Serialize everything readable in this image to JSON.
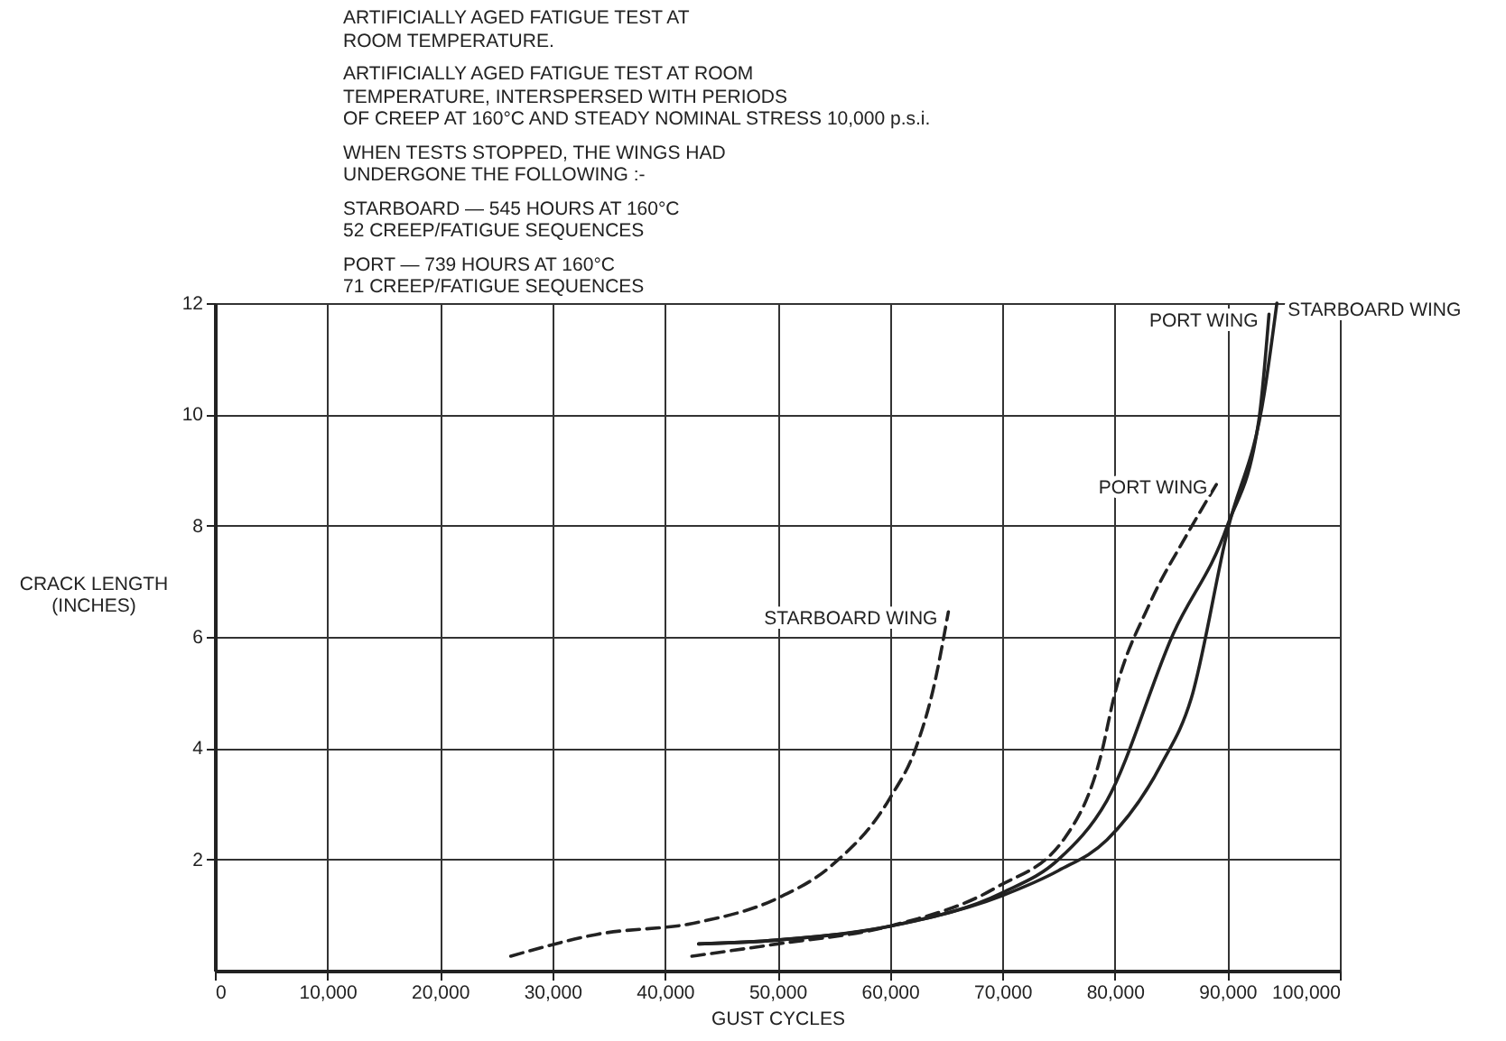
{
  "chart_data": {
    "type": "line",
    "xlabel": "GUST CYCLES",
    "ylabel": "CRACK LENGTH (INCHES)",
    "xlim": [
      0,
      100000
    ],
    "xticks": [
      {
        "value": 0,
        "label": "0"
      },
      {
        "value": 10000,
        "label": "10,000"
      },
      {
        "value": 20000,
        "label": "20,000"
      },
      {
        "value": 30000,
        "label": "30,000"
      },
      {
        "value": 40000,
        "label": "40,000"
      },
      {
        "value": 50000,
        "label": "50,000"
      },
      {
        "value": 60000,
        "label": "60,000"
      },
      {
        "value": 70000,
        "label": "70,000"
      },
      {
        "value": 80000,
        "label": "80,000"
      },
      {
        "value": 90000,
        "label": "90,000"
      },
      {
        "value": 100000,
        "label": "100,000"
      }
    ],
    "ylim": [
      0,
      12
    ],
    "yticks": [
      2,
      4,
      6,
      8,
      10,
      12
    ],
    "grid": true,
    "series": [
      {
        "name": "STARBOARD WING",
        "color": "#222222",
        "line_style": "dashed",
        "x": [
          26300,
          33900,
          43000,
          50000,
          54700,
          60000,
          62300,
          63900,
          65200
        ],
        "values": [
          0.26,
          0.65,
          0.87,
          1.3,
          1.87,
          3.1,
          4.0,
          5.1,
          6.45
        ]
      },
      {
        "name": "PORT WING",
        "color": "#222222",
        "line_style": "dashed",
        "x": [
          42400,
          50000,
          60000,
          69500,
          75600,
          78800,
          79900,
          83100,
          86300,
          89200
        ],
        "values": [
          0.26,
          0.48,
          0.8,
          1.5,
          2.4,
          3.9,
          4.9,
          6.6,
          7.8,
          8.8
        ]
      },
      {
        "name": "PORT WING",
        "color": "#222222",
        "line_style": "solid",
        "x": [
          43000,
          50000,
          60000,
          70000,
          75000,
          79300,
          85200,
          90000,
          92800,
          93700
        ],
        "values": [
          0.48,
          0.55,
          0.8,
          1.4,
          2.0,
          3.06,
          6.06,
          8.0,
          9.9,
          11.8
        ]
      },
      {
        "name": "STARBOARD WING",
        "color": "#222222",
        "line_style": "solid",
        "x": [
          43000,
          50000,
          60000,
          70000,
          75000,
          79300,
          84100,
          86800,
          90000,
          93300,
          94400
        ],
        "values": [
          0.48,
          0.55,
          0.8,
          1.35,
          1.8,
          2.35,
          3.7,
          4.9,
          7.9,
          10.4,
          12.0
        ]
      }
    ],
    "annotations": [
      "ARTIFICIALLY AGED FATIGUE TEST AT\nROOM TEMPERATURE.",
      "ARTIFICIALLY AGED FATIGUE TEST AT ROOM\nTEMPERATURE, INTERSPERSED WITH PERIODS\nOF CREEP AT 160°C AND STEADY NOMINAL STRESS 10,000 p.s.i.",
      "WHEN TESTS STOPPED, THE WINGS HAD\nUNDERGONE THE FOLLOWING :-",
      "STARBOARD — 545 HOURS AT 160°C\n52 CREEP/FATIGUE SEQUENCES",
      "PORT — 739 HOURS AT 160°C\n71 CREEP/FATIGUE SEQUENCES"
    ]
  }
}
